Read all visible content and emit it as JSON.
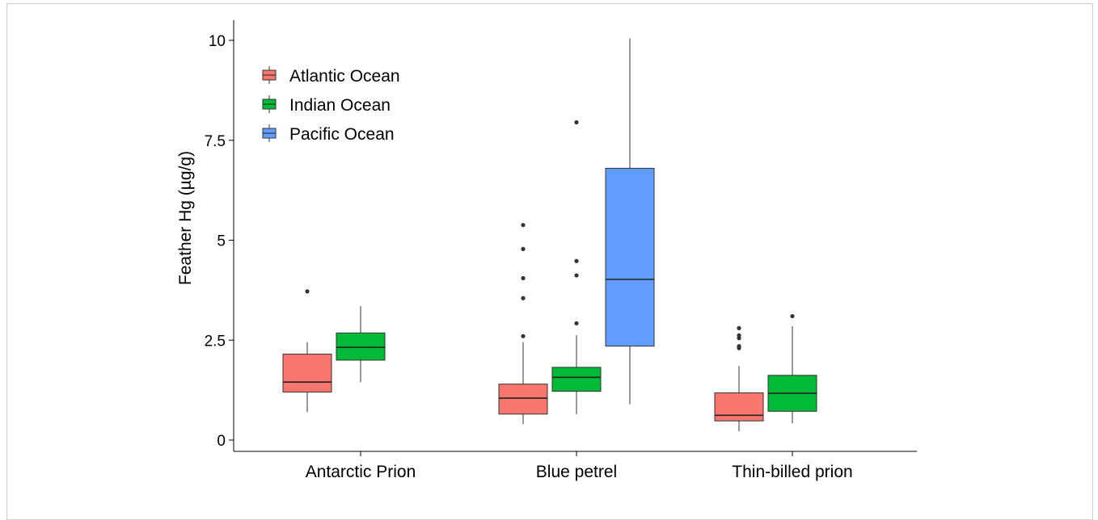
{
  "chart_data": {
    "type": "boxplot",
    "title": "",
    "xlabel": "",
    "ylabel": "Feather Hg (µg/g)",
    "ylim": [
      0,
      10
    ],
    "yticks": [
      {
        "value": 0,
        "label": "0"
      },
      {
        "value": 2.5,
        "label": "2.5"
      },
      {
        "value": 5,
        "label": "5"
      },
      {
        "value": 7.5,
        "label": "7.5"
      },
      {
        "value": 10,
        "label": "10"
      }
    ],
    "categories": [
      "Antarctic Prion",
      "Blue petrel",
      "Thin-billed prion"
    ],
    "grid": false,
    "legend_position": "top-left",
    "series": [
      {
        "name": "Atlantic Ocean",
        "color": "#F8766D",
        "boxes": [
          {
            "category": "Antarctic Prion",
            "min": 0.7,
            "q1": 1.2,
            "median": 1.45,
            "q3": 2.15,
            "max": 2.45,
            "outliers": [
              3.72
            ]
          },
          {
            "category": "Blue petrel",
            "min": 0.4,
            "q1": 0.65,
            "median": 1.05,
            "q3": 1.4,
            "max": 2.45,
            "outliers": [
              2.6,
              3.55,
              4.05,
              4.78,
              5.38
            ]
          },
          {
            "category": "Thin-billed prion",
            "min": 0.22,
            "q1": 0.48,
            "median": 0.62,
            "q3": 1.18,
            "max": 1.85,
            "outliers": [
              2.3,
              2.35,
              2.55,
              2.62,
              2.8
            ]
          }
        ]
      },
      {
        "name": "Indian Ocean",
        "color": "#00BA38",
        "boxes": [
          {
            "category": "Antarctic Prion",
            "min": 1.45,
            "q1": 2.0,
            "median": 2.32,
            "q3": 2.68,
            "max": 3.35,
            "outliers": []
          },
          {
            "category": "Blue petrel",
            "min": 0.65,
            "q1": 1.22,
            "median": 1.57,
            "q3": 1.82,
            "max": 2.62,
            "outliers": [
              2.92,
              4.12,
              4.48,
              7.95
            ]
          },
          {
            "category": "Thin-billed prion",
            "min": 0.42,
            "q1": 0.72,
            "median": 1.17,
            "q3": 1.62,
            "max": 2.85,
            "outliers": [
              3.1
            ]
          }
        ]
      },
      {
        "name": "Pacific Ocean",
        "color": "#619CFF",
        "boxes": [
          {
            "category": "Blue petrel",
            "min": 0.9,
            "q1": 2.35,
            "median": 4.02,
            "q3": 6.8,
            "max": 10.05,
            "outliers": []
          }
        ]
      }
    ]
  }
}
